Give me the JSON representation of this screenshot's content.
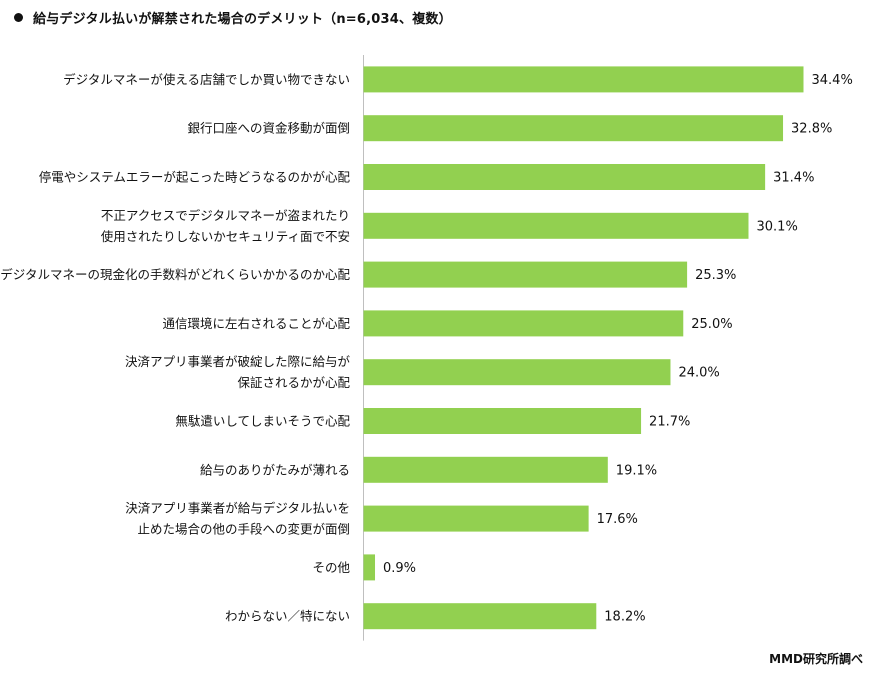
{
  "title": "給与デジタル払いが解禁された場合のデメリット（n=6,034、複数）",
  "source": "MMD研究所調べ",
  "chart_data": {
    "type": "bar",
    "orientation": "horizontal",
    "title": "給与デジタル払いが解禁された場合のデメリット（n=6,034、複数）",
    "xlim": [
      0,
      34.4
    ],
    "grid": false,
    "value_suffix": "%",
    "bar_color": "#92d050",
    "categories": [
      [
        "デジタルマネーが使える店舗でしか買い物できない"
      ],
      [
        "銀行口座への資金移動が面倒"
      ],
      [
        "停電やシステムエラーが起こった時どうなるのかが心配"
      ],
      [
        "不正アクセスでデジタルマネーが盗まれたり",
        "使用されたりしないかセキュリティ面で不安"
      ],
      [
        "デジタルマネーの現金化の手数料がどれくらいかかるのか心配"
      ],
      [
        "通信環境に左右されることが心配"
      ],
      [
        "決済アプリ事業者が破綻した際に給与が",
        "保証されるかが心配"
      ],
      [
        "無駄遣いしてしまいそうで心配"
      ],
      [
        "給与のありがたみが薄れる"
      ],
      [
        "決済アプリ事業者が給与デジタル払いを",
        "止めた場合の他の手段への変更が面倒"
      ],
      [
        "その他"
      ],
      [
        "わからない／特にない"
      ]
    ],
    "values": [
      34.4,
      32.8,
      31.4,
      30.1,
      25.3,
      25.0,
      24.0,
      21.7,
      19.1,
      17.6,
      0.9,
      18.2
    ]
  }
}
